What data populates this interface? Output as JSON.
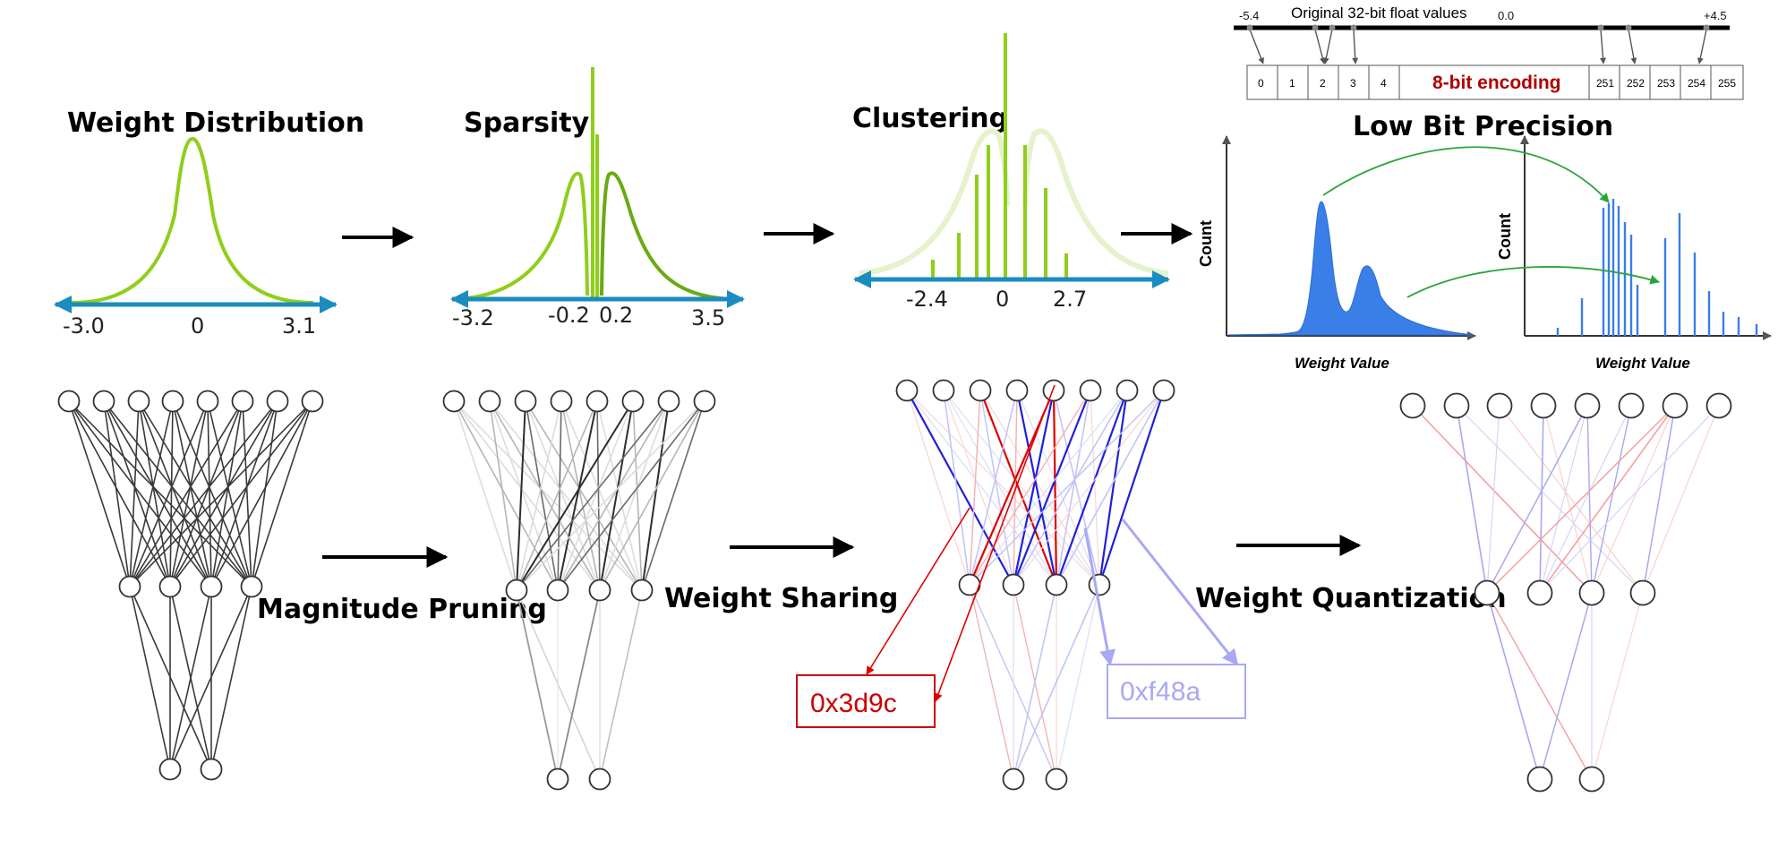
{
  "panels": {
    "weight_distribution": {
      "title": "Weight Distribution",
      "ticks": [
        "-3.0",
        "0",
        "3.1"
      ]
    },
    "sparsity": {
      "title": "Sparsity",
      "ticks": [
        "-3.2",
        "-0.2",
        "0.2",
        "3.5"
      ]
    },
    "clustering": {
      "title": "Clustering",
      "ticks": [
        "-2.4",
        "0",
        "2.7"
      ]
    },
    "low_bit": {
      "title": "Low Bit Precision",
      "float_header": "Original 32-bit float values",
      "float_ticks": [
        "-5.4",
        "0.0",
        "+4.5"
      ],
      "encoding_cells": [
        "0",
        "1",
        "2",
        "3",
        "4",
        "251",
        "252",
        "253",
        "254",
        "255"
      ],
      "encoding_label": "8-bit encoding",
      "left_chart": {
        "ylabel": "Count",
        "xlabel": "Weight Value"
      },
      "right_chart": {
        "ylabel": "Count",
        "xlabel": "Weight Value"
      }
    }
  },
  "steps": {
    "pruning": "Magnitude Pruning",
    "sharing": "Weight Sharing",
    "quantization": "Weight Quantization"
  },
  "codes": {
    "red": "0x3d9c",
    "blue": "0xf48a"
  },
  "colors": {
    "curve": "#8fce1a",
    "axis": "#1a8cc0",
    "hist": "#3a7ee8",
    "green_arrow": "#2aa53a",
    "red": "#e00000",
    "blue": "#2020d8",
    "light_blue": "#a8a8f4"
  }
}
